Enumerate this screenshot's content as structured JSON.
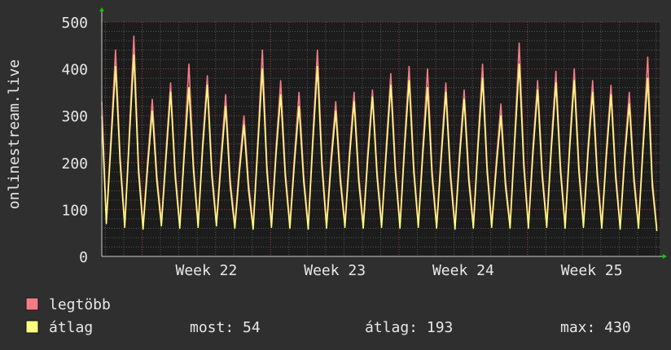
{
  "chart_data": {
    "type": "line",
    "y_label": "onlinestream.live",
    "xlim": [
      0,
      30.4
    ],
    "ylim": [
      0,
      500
    ],
    "yticks": [
      0,
      100,
      200,
      300,
      400,
      500
    ],
    "xticks": [
      {
        "value": 5.7,
        "label": "Week 22"
      },
      {
        "value": 12.7,
        "label": "Week 23"
      },
      {
        "value": 19.7,
        "label": "Week 24"
      },
      {
        "value": 26.7,
        "label": "Week 25"
      }
    ],
    "x_major_grid": [
      2.2,
      9.2,
      16.2,
      23.2
    ],
    "grid": true,
    "x": [
      0,
      0.25,
      0.5,
      0.75,
      1,
      1.25,
      1.5,
      1.75,
      2,
      2.25,
      2.5,
      2.75,
      3,
      3.25,
      3.5,
      3.75,
      4,
      4.25,
      4.5,
      4.75,
      5,
      5.25,
      5.5,
      5.75,
      6,
      6.25,
      6.5,
      6.75,
      7,
      7.25,
      7.5,
      7.75,
      8,
      8.25,
      8.5,
      8.75,
      9,
      9.25,
      9.5,
      9.75,
      10,
      10.25,
      10.5,
      10.75,
      11,
      11.25,
      11.5,
      11.75,
      12,
      12.25,
      12.5,
      12.75,
      13,
      13.25,
      13.5,
      13.75,
      14,
      14.25,
      14.5,
      14.75,
      15,
      15.25,
      15.5,
      15.75,
      16,
      16.25,
      16.5,
      16.75,
      17,
      17.25,
      17.5,
      17.75,
      18,
      18.25,
      18.5,
      18.75,
      19,
      19.25,
      19.5,
      19.75,
      20,
      20.25,
      20.5,
      20.75,
      21,
      21.25,
      21.5,
      21.75,
      22,
      22.25,
      22.5,
      22.75,
      23,
      23.25,
      23.5,
      23.75,
      24,
      24.25,
      24.5,
      24.75,
      25,
      25.25,
      25.5,
      25.75,
      26,
      26.25,
      26.5,
      26.75,
      27,
      27.25,
      27.5,
      27.75,
      28,
      28.25,
      28.5,
      28.75,
      29,
      29.25,
      29.5,
      29.75,
      30,
      30.25
    ],
    "series": [
      {
        "name": "legtöbb",
        "color": "#f47c86",
        "values": [
          330,
          78,
          255,
          440,
          215,
          70,
          265,
          470,
          195,
          66,
          205,
          335,
          175,
          73,
          225,
          370,
          185,
          68,
          235,
          410,
          195,
          70,
          245,
          385,
          185,
          73,
          215,
          345,
          165,
          68,
          195,
          300,
          155,
          66,
          245,
          440,
          195,
          70,
          235,
          375,
          185,
          68,
          215,
          350,
          175,
          66,
          255,
          440,
          205,
          68,
          215,
          330,
          175,
          70,
          225,
          350,
          175,
          68,
          225,
          355,
          185,
          70,
          235,
          390,
          195,
          68,
          245,
          405,
          195,
          70,
          235,
          400,
          185,
          68,
          225,
          370,
          185,
          66,
          225,
          355,
          175,
          68,
          245,
          410,
          195,
          70,
          205,
          325,
          165,
          68,
          255,
          455,
          205,
          68,
          235,
          375,
          185,
          70,
          245,
          395,
          195,
          68,
          245,
          400,
          195,
          70,
          235,
          375,
          185,
          68,
          230,
          365,
          185,
          66,
          225,
          350,
          175,
          68,
          245,
          425,
          165,
          60
        ]
      },
      {
        "name": "átlag",
        "color": "#ffff80",
        "values": [
          300,
          70,
          240,
          405,
          200,
          62,
          250,
          430,
          180,
          58,
          190,
          310,
          160,
          65,
          210,
          350,
          170,
          60,
          220,
          360,
          180,
          62,
          230,
          365,
          170,
          65,
          200,
          320,
          150,
          60,
          180,
          280,
          140,
          58,
          230,
          400,
          180,
          62,
          220,
          345,
          170,
          60,
          200,
          320,
          160,
          58,
          240,
          405,
          190,
          60,
          200,
          310,
          160,
          62,
          210,
          330,
          160,
          60,
          210,
          340,
          170,
          62,
          220,
          365,
          180,
          60,
          230,
          375,
          180,
          62,
          220,
          360,
          170,
          60,
          210,
          350,
          170,
          58,
          210,
          335,
          160,
          60,
          230,
          380,
          180,
          62,
          190,
          300,
          150,
          60,
          240,
          410,
          190,
          60,
          220,
          355,
          170,
          62,
          230,
          370,
          180,
          60,
          230,
          375,
          180,
          62,
          220,
          350,
          170,
          60,
          215,
          345,
          170,
          58,
          210,
          325,
          160,
          60,
          230,
          380,
          150,
          54
        ]
      }
    ],
    "stats": [
      "most: 54",
      "átlag: 193",
      "max: 430"
    ]
  }
}
